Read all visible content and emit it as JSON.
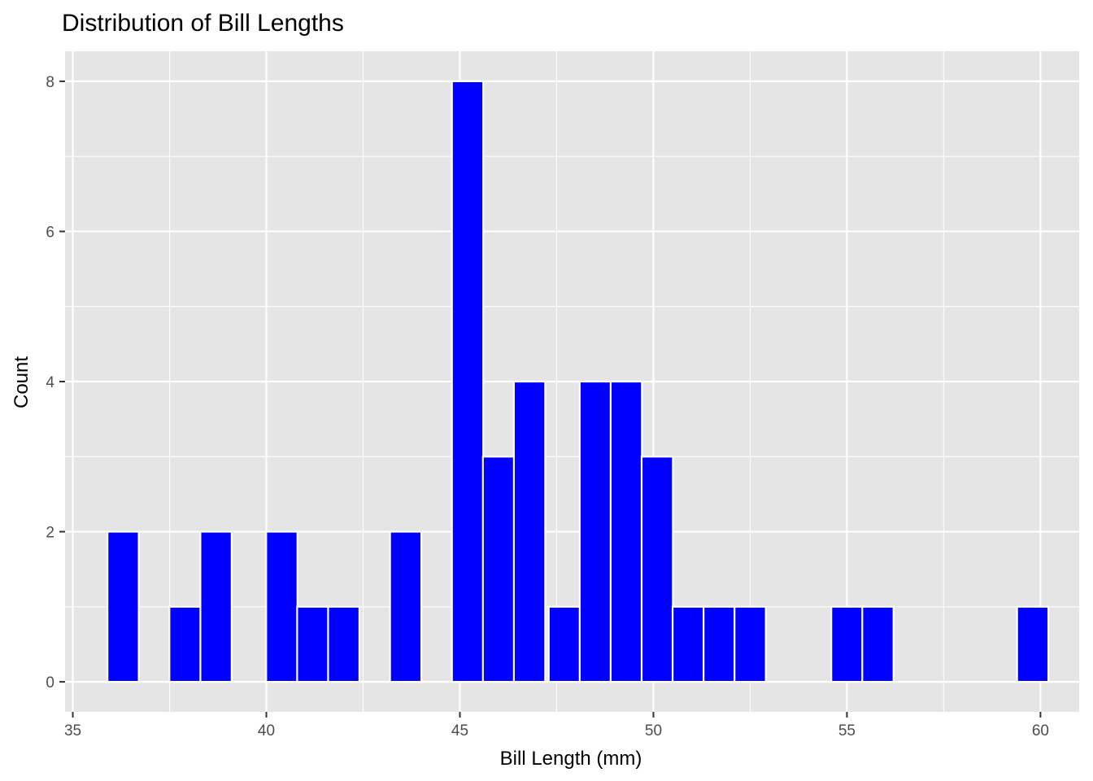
{
  "chart_data": {
    "type": "bar",
    "title": "Distribution of Bill Lengths",
    "xlabel": "Bill Length (mm)",
    "ylabel": "Count",
    "xlim": [
      34.8,
      61.0
    ],
    "ylim": [
      -0.4,
      8.4
    ],
    "x_ticks": [
      35,
      40,
      45,
      50,
      55,
      60
    ],
    "y_ticks": [
      0,
      2,
      4,
      6,
      8
    ],
    "bin_width": 0.808,
    "bins": [
      {
        "x": 36.3,
        "count": 2
      },
      {
        "x": 37.1,
        "count": 0
      },
      {
        "x": 37.9,
        "count": 1
      },
      {
        "x": 38.7,
        "count": 2
      },
      {
        "x": 39.5,
        "count": 0
      },
      {
        "x": 40.4,
        "count": 2
      },
      {
        "x": 41.2,
        "count": 1
      },
      {
        "x": 42.0,
        "count": 1
      },
      {
        "x": 42.8,
        "count": 0
      },
      {
        "x": 43.6,
        "count": 2
      },
      {
        "x": 44.4,
        "count": 0
      },
      {
        "x": 45.2,
        "count": 8
      },
      {
        "x": 46.0,
        "count": 3
      },
      {
        "x": 46.8,
        "count": 4
      },
      {
        "x": 47.7,
        "count": 1
      },
      {
        "x": 48.5,
        "count": 4
      },
      {
        "x": 49.3,
        "count": 4
      },
      {
        "x": 50.1,
        "count": 3
      },
      {
        "x": 50.9,
        "count": 1
      },
      {
        "x": 51.7,
        "count": 1
      },
      {
        "x": 52.5,
        "count": 1
      },
      {
        "x": 53.3,
        "count": 0
      },
      {
        "x": 54.1,
        "count": 0
      },
      {
        "x": 55.0,
        "count": 1
      },
      {
        "x": 55.8,
        "count": 1
      },
      {
        "x": 56.6,
        "count": 0
      },
      {
        "x": 57.4,
        "count": 0
      },
      {
        "x": 58.2,
        "count": 0
      },
      {
        "x": 59.0,
        "count": 0
      },
      {
        "x": 59.8,
        "count": 1
      }
    ],
    "fill_color": "#0000FF",
    "outline_color": "#FFFFFF",
    "panel_color": "#E5E5E5",
    "grid": true,
    "legend": "none"
  }
}
